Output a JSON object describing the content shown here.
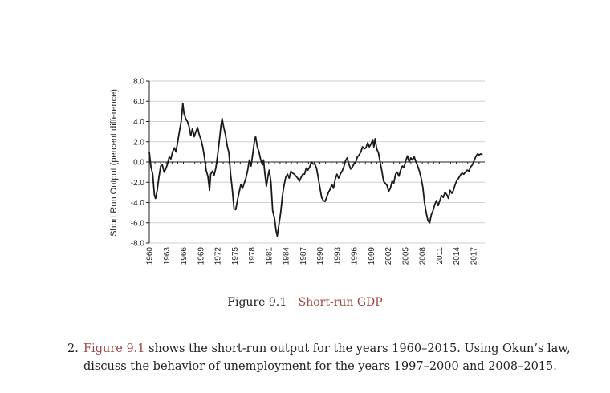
{
  "chart_data": {
    "type": "line",
    "ylabel": "Short Run Output (percent difference)",
    "ylim": [
      -8.0,
      8.0
    ],
    "yticks": [
      "8.0",
      "6.0",
      "4.0",
      "2.0",
      "0.0",
      "-2.0",
      "-4.0",
      "-6.0",
      "-8.0"
    ],
    "xlim": [
      1960,
      2019
    ],
    "xticks": [
      "1960",
      "1963",
      "1966",
      "1969",
      "1972",
      "1975",
      "1978",
      "1981",
      "1984",
      "1987",
      "1990",
      "1993",
      "1996",
      "1999",
      "2002",
      "2005",
      "2008",
      "2011",
      "2014",
      "2017"
    ],
    "grid": true,
    "zero_line": true,
    "series": [
      {
        "color": "#1a1a1a",
        "points": [
          [
            1960.0,
            1.0
          ],
          [
            1960.3,
            -0.5
          ],
          [
            1960.6,
            -1.2
          ],
          [
            1960.9,
            -3.3
          ],
          [
            1961.1,
            -3.6
          ],
          [
            1961.4,
            -2.8
          ],
          [
            1961.7,
            -1.5
          ],
          [
            1962.0,
            -0.4
          ],
          [
            1962.3,
            -0.3
          ],
          [
            1962.6,
            -1.0
          ],
          [
            1962.9,
            -0.7
          ],
          [
            1963.2,
            -0.2
          ],
          [
            1963.5,
            0.5
          ],
          [
            1963.8,
            0.3
          ],
          [
            1964.1,
            1.0
          ],
          [
            1964.4,
            1.4
          ],
          [
            1964.7,
            1.0
          ],
          [
            1965.0,
            2.0
          ],
          [
            1965.3,
            3.0
          ],
          [
            1965.6,
            4.0
          ],
          [
            1965.9,
            5.8
          ],
          [
            1966.1,
            4.8
          ],
          [
            1966.4,
            4.3
          ],
          [
            1966.7,
            4.0
          ],
          [
            1967.0,
            3.5
          ],
          [
            1967.3,
            2.6
          ],
          [
            1967.6,
            3.3
          ],
          [
            1967.9,
            2.5
          ],
          [
            1968.2,
            3.0
          ],
          [
            1968.5,
            3.4
          ],
          [
            1968.8,
            2.7
          ],
          [
            1969.1,
            2.2
          ],
          [
            1969.4,
            1.5
          ],
          [
            1969.7,
            0.5
          ],
          [
            1970.0,
            -0.8
          ],
          [
            1970.3,
            -1.4
          ],
          [
            1970.6,
            -2.8
          ],
          [
            1970.8,
            -1.2
          ],
          [
            1971.1,
            -0.9
          ],
          [
            1971.4,
            -1.3
          ],
          [
            1971.7,
            -0.6
          ],
          [
            1972.0,
            0.6
          ],
          [
            1972.3,
            2.0
          ],
          [
            1972.6,
            3.6
          ],
          [
            1972.8,
            4.3
          ],
          [
            1973.1,
            3.4
          ],
          [
            1973.4,
            2.7
          ],
          [
            1973.7,
            1.6
          ],
          [
            1974.0,
            0.9
          ],
          [
            1974.3,
            -1.2
          ],
          [
            1974.6,
            -2.7
          ],
          [
            1974.9,
            -4.6
          ],
          [
            1975.2,
            -4.7
          ],
          [
            1975.5,
            -3.8
          ],
          [
            1975.8,
            -3.0
          ],
          [
            1976.1,
            -2.2
          ],
          [
            1976.4,
            -2.6
          ],
          [
            1976.7,
            -2.1
          ],
          [
            1977.0,
            -1.6
          ],
          [
            1977.3,
            -0.8
          ],
          [
            1977.6,
            0.2
          ],
          [
            1977.9,
            -0.4
          ],
          [
            1978.2,
            0.8
          ],
          [
            1978.5,
            2.1
          ],
          [
            1978.7,
            2.5
          ],
          [
            1979.0,
            1.5
          ],
          [
            1979.3,
            1.0
          ],
          [
            1979.6,
            0.2
          ],
          [
            1979.9,
            -0.3
          ],
          [
            1980.1,
            0.2
          ],
          [
            1980.3,
            -1.0
          ],
          [
            1980.6,
            -2.4
          ],
          [
            1980.9,
            -1.3
          ],
          [
            1981.1,
            -0.8
          ],
          [
            1981.4,
            -2.0
          ],
          [
            1981.7,
            -4.8
          ],
          [
            1982.0,
            -5.5
          ],
          [
            1982.3,
            -6.8
          ],
          [
            1982.5,
            -7.3
          ],
          [
            1982.8,
            -6.2
          ],
          [
            1983.1,
            -5.0
          ],
          [
            1983.4,
            -3.4
          ],
          [
            1983.7,
            -2.3
          ],
          [
            1984.0,
            -1.5
          ],
          [
            1984.3,
            -1.2
          ],
          [
            1984.6,
            -1.6
          ],
          [
            1984.9,
            -0.9
          ],
          [
            1985.2,
            -1.1
          ],
          [
            1985.5,
            -1.2
          ],
          [
            1985.8,
            -1.4
          ],
          [
            1986.1,
            -1.6
          ],
          [
            1986.4,
            -1.9
          ],
          [
            1986.7,
            -1.5
          ],
          [
            1987.0,
            -1.2
          ],
          [
            1987.3,
            -1.2
          ],
          [
            1987.6,
            -0.6
          ],
          [
            1987.9,
            -0.8
          ],
          [
            1988.2,
            -0.5
          ],
          [
            1988.5,
            0.0
          ],
          [
            1988.8,
            -0.2
          ],
          [
            1989.1,
            -0.2
          ],
          [
            1989.4,
            -0.6
          ],
          [
            1989.7,
            -1.5
          ],
          [
            1990.0,
            -2.5
          ],
          [
            1990.3,
            -3.5
          ],
          [
            1990.6,
            -3.8
          ],
          [
            1990.9,
            -3.9
          ],
          [
            1991.2,
            -3.5
          ],
          [
            1991.5,
            -3.0
          ],
          [
            1991.8,
            -2.7
          ],
          [
            1992.1,
            -2.2
          ],
          [
            1992.4,
            -2.6
          ],
          [
            1992.7,
            -1.7
          ],
          [
            1993.0,
            -1.2
          ],
          [
            1993.3,
            -1.6
          ],
          [
            1993.6,
            -1.2
          ],
          [
            1993.9,
            -0.9
          ],
          [
            1994.2,
            -0.5
          ],
          [
            1994.5,
            0.1
          ],
          [
            1994.8,
            0.4
          ],
          [
            1995.1,
            -0.2
          ],
          [
            1995.4,
            -0.7
          ],
          [
            1995.7,
            -0.5
          ],
          [
            1996.0,
            -0.2
          ],
          [
            1996.3,
            0.0
          ],
          [
            1996.6,
            0.5
          ],
          [
            1996.9,
            0.7
          ],
          [
            1997.2,
            1.0
          ],
          [
            1997.5,
            1.5
          ],
          [
            1997.8,
            1.3
          ],
          [
            1998.1,
            1.4
          ],
          [
            1998.4,
            1.9
          ],
          [
            1998.7,
            1.5
          ],
          [
            1999.0,
            1.8
          ],
          [
            1999.3,
            2.2
          ],
          [
            1999.5,
            1.5
          ],
          [
            1999.7,
            2.3
          ],
          [
            2000.0,
            1.3
          ],
          [
            2000.3,
            0.9
          ],
          [
            2000.6,
            0.0
          ],
          [
            2000.9,
            -0.9
          ],
          [
            2001.2,
            -1.9
          ],
          [
            2001.5,
            -2.1
          ],
          [
            2001.8,
            -2.3
          ],
          [
            2002.1,
            -2.9
          ],
          [
            2002.4,
            -2.6
          ],
          [
            2002.7,
            -1.9
          ],
          [
            2003.0,
            -2.1
          ],
          [
            2003.3,
            -1.2
          ],
          [
            2003.6,
            -1.0
          ],
          [
            2003.9,
            -1.4
          ],
          [
            2004.2,
            -0.8
          ],
          [
            2004.5,
            -0.4
          ],
          [
            2004.8,
            -0.5
          ],
          [
            2005.1,
            0.1
          ],
          [
            2005.4,
            0.6
          ],
          [
            2005.7,
            0.0
          ],
          [
            2006.0,
            0.4
          ],
          [
            2006.3,
            0.2
          ],
          [
            2006.6,
            0.5
          ],
          [
            2006.9,
            0.0
          ],
          [
            2007.2,
            -0.4
          ],
          [
            2007.5,
            -0.9
          ],
          [
            2007.8,
            -1.6
          ],
          [
            2008.1,
            -2.5
          ],
          [
            2008.4,
            -4.0
          ],
          [
            2008.7,
            -5.0
          ],
          [
            2009.0,
            -5.8
          ],
          [
            2009.3,
            -6.0
          ],
          [
            2009.6,
            -5.2
          ],
          [
            2009.9,
            -4.8
          ],
          [
            2010.2,
            -4.2
          ],
          [
            2010.5,
            -3.8
          ],
          [
            2010.8,
            -4.3
          ],
          [
            2011.1,
            -3.8
          ],
          [
            2011.4,
            -3.3
          ],
          [
            2011.7,
            -3.5
          ],
          [
            2012.0,
            -3.0
          ],
          [
            2012.3,
            -3.2
          ],
          [
            2012.6,
            -3.6
          ],
          [
            2012.9,
            -2.8
          ],
          [
            2013.2,
            -3.1
          ],
          [
            2013.5,
            -2.8
          ],
          [
            2013.8,
            -2.2
          ],
          [
            2014.1,
            -1.8
          ],
          [
            2014.4,
            -1.6
          ],
          [
            2014.7,
            -1.3
          ],
          [
            2015.0,
            -1.1
          ],
          [
            2015.3,
            -1.2
          ],
          [
            2015.6,
            -1.0
          ],
          [
            2015.9,
            -0.8
          ],
          [
            2016.2,
            -0.9
          ],
          [
            2016.5,
            -0.5
          ],
          [
            2016.8,
            -0.3
          ],
          [
            2017.1,
            0.1
          ],
          [
            2017.4,
            0.5
          ],
          [
            2017.7,
            0.8
          ],
          [
            2018.0,
            0.7
          ],
          [
            2018.3,
            0.8
          ],
          [
            2018.6,
            0.7
          ]
        ]
      }
    ]
  },
  "caption": {
    "number": "Figure 9.1",
    "title": "Short-run GDP"
  },
  "question": {
    "number": "2.",
    "ref": "Figure 9.1",
    "text_line1": " shows the short-run output for the years 1960–2015. Using Okun’s law,",
    "text_line2": "discuss the behavior of unemployment for the years 1997–2000 and 2008–2015."
  }
}
